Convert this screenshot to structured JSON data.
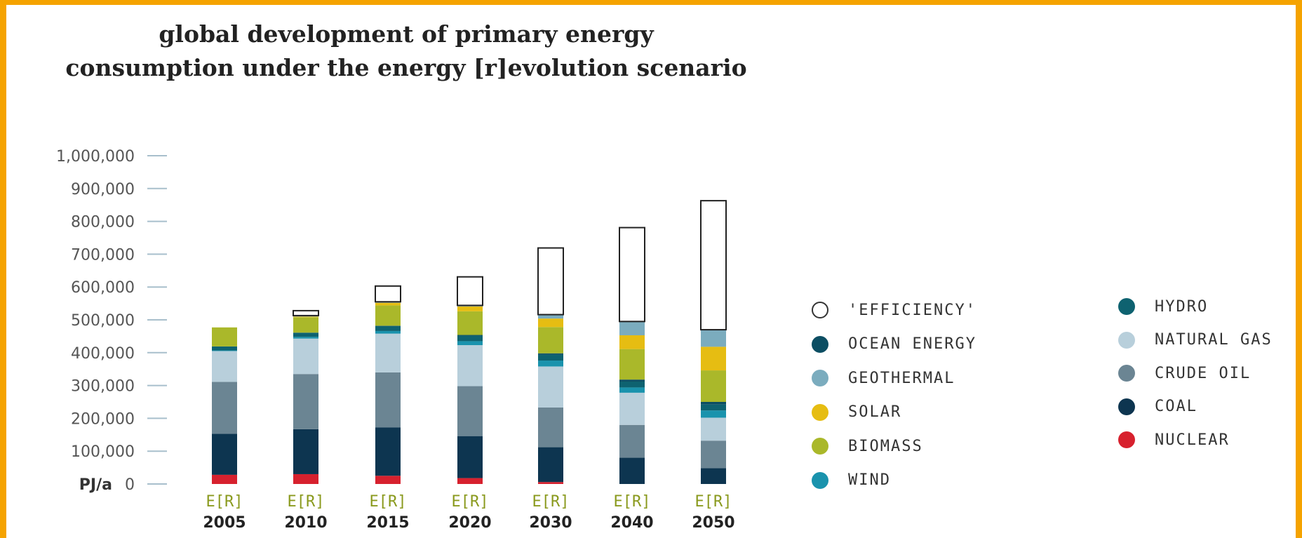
{
  "title_lines": [
    "global development of primary energy",
    "consumption under the energy [r]evolution scenario"
  ],
  "chart_data": {
    "type": "bar",
    "stacked": true,
    "title": "global development of primary energy consumption under the energy [r]evolution scenario",
    "ylabel": "PJ/a",
    "ylim": [
      0,
      1000000
    ],
    "yticks": [
      {
        "value": 0,
        "label": "0"
      },
      {
        "value": 100000,
        "label": "100,000"
      },
      {
        "value": 200000,
        "label": "200,000"
      },
      {
        "value": 300000,
        "label": "300,000"
      },
      {
        "value": 400000,
        "label": "400,000"
      },
      {
        "value": 500000,
        "label": "500,000"
      },
      {
        "value": 600000,
        "label": "600,000"
      },
      {
        "value": 700000,
        "label": "700,000"
      },
      {
        "value": 800000,
        "label": "800,000"
      },
      {
        "value": 900000,
        "label": "900,000"
      },
      {
        "value": 1000000,
        "label": "1,000,000"
      }
    ],
    "scenario_label": "E[R]",
    "categories": [
      "2005",
      "2010",
      "2015",
      "2020",
      "2030",
      "2040",
      "2050"
    ],
    "series": [
      {
        "name": "NUCLEAR",
        "color": "#d7212e",
        "values": [
          28000,
          30000,
          25000,
          18000,
          6000,
          0,
          0
        ]
      },
      {
        "name": "COAL",
        "color": "#0d3550",
        "values": [
          125000,
          137000,
          147000,
          128000,
          106000,
          80000,
          48000
        ]
      },
      {
        "name": "CRUDE OIL",
        "color": "#6b8593",
        "values": [
          158000,
          168000,
          168000,
          152000,
          121000,
          100000,
          84000
        ]
      },
      {
        "name": "NATURAL GAS",
        "color": "#b8cfdb",
        "values": [
          94000,
          108000,
          118000,
          125000,
          125000,
          98000,
          70000
        ]
      },
      {
        "name": "WIND",
        "color": "#1a93ad",
        "values": [
          2000,
          5000,
          8000,
          12000,
          18000,
          16000,
          22000
        ]
      },
      {
        "name": "HYDRO",
        "color": "#0e6270",
        "values": [
          12000,
          13000,
          15000,
          17000,
          18000,
          18000,
          18000
        ]
      },
      {
        "name": "OCEAN ENERGY",
        "color": "#0c4e63",
        "values": [
          0,
          0,
          1000,
          2000,
          4000,
          6000,
          8000
        ]
      },
      {
        "name": "BIOMASS",
        "color": "#aab82a",
        "values": [
          58000,
          47000,
          62000,
          72000,
          80000,
          93000,
          96000
        ]
      },
      {
        "name": "SOLAR",
        "color": "#e6bd12",
        "values": [
          0,
          2000,
          8000,
          15000,
          26000,
          42000,
          72000
        ]
      },
      {
        "name": "GEOTHERMAL",
        "color": "#7bacbe",
        "values": [
          0,
          3000,
          3000,
          3000,
          12000,
          42000,
          52000
        ]
      },
      {
        "name": "'EFFICIENCY'",
        "color": "#ffffff",
        "values": [
          0,
          15000,
          48000,
          87000,
          203000,
          286000,
          393000
        ]
      }
    ]
  },
  "legend_left": [
    {
      "label": "'EFFICIENCY'",
      "color": "#ffffff"
    },
    {
      "label": "OCEAN ENERGY",
      "color": "#0c4e63"
    },
    {
      "label": "GEOTHERMAL",
      "color": "#7bacbe"
    },
    {
      "label": "SOLAR",
      "color": "#e6bd12"
    },
    {
      "label": "BIOMASS",
      "color": "#aab82a"
    },
    {
      "label": "WIND",
      "color": "#1a93ad"
    }
  ],
  "legend_right": [
    {
      "label": "HYDRO",
      "color": "#0e6270"
    },
    {
      "label": "NATURAL GAS",
      "color": "#b8cfdb"
    },
    {
      "label": "CRUDE OIL",
      "color": "#6b8593"
    },
    {
      "label": "COAL",
      "color": "#0d3550"
    },
    {
      "label": "NUCLEAR",
      "color": "#d7212e"
    }
  ],
  "colors": {
    "frame": "#f5a300",
    "scenario_label": "#8a9a1e",
    "tick_mark": "#a8bfcc"
  }
}
